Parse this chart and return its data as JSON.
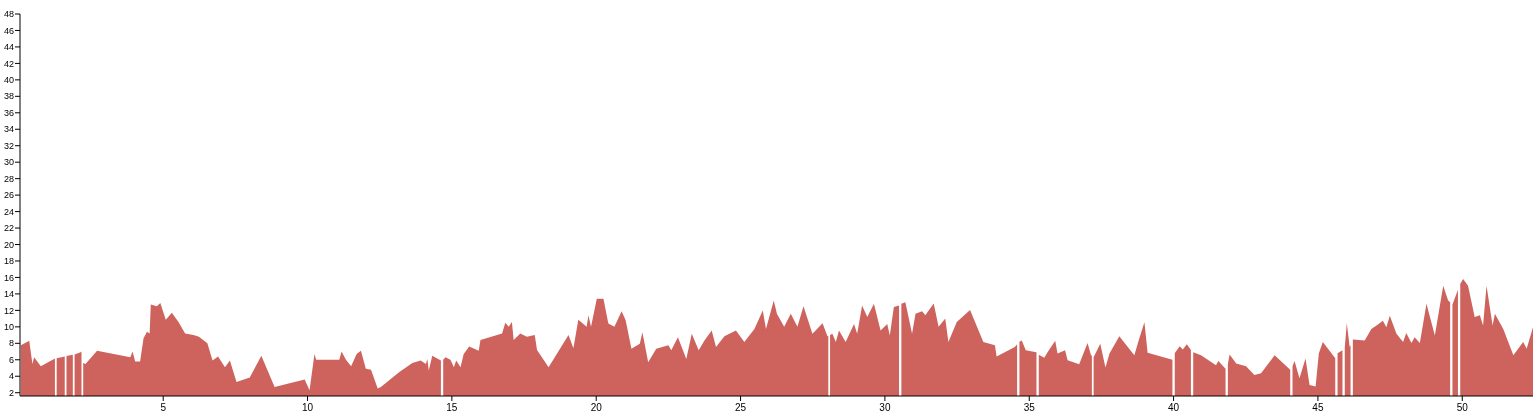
{
  "chart_data": {
    "type": "area",
    "color": "#cd635c",
    "xlim": [
      0.04,
      52.45
    ],
    "xticks": [
      5,
      10,
      15,
      20,
      25,
      30,
      35,
      40,
      45,
      50
    ],
    "ylim": [
      1.6,
      48
    ],
    "yticks": [
      2,
      4,
      6,
      8,
      10,
      12,
      14,
      16,
      18,
      20,
      22,
      24,
      26,
      28,
      30,
      32,
      34,
      36,
      38,
      40,
      42,
      44,
      46,
      48
    ],
    "grid": false,
    "x": [
      0.07,
      0.3,
      0.36,
      0.47,
      0.53,
      0.76,
      1.22,
      1.25,
      1.28,
      1.31,
      1.59,
      1.62,
      1.65,
      1.87,
      1.9,
      1.93,
      2.14,
      2.17,
      2.2,
      2.23,
      2.31,
      2.71,
      3.86,
      3.94,
      4.03,
      4.2,
      4.32,
      4.44,
      4.53,
      4.57,
      4.78,
      4.9,
      5.09,
      5.3,
      5.53,
      5.76,
      6.05,
      6.24,
      6.53,
      6.71,
      6.9,
      7.14,
      7.31,
      7.54,
      8.0,
      8.4,
      8.86,
      9.9,
      10.07,
      10.24,
      10.3,
      11.1,
      11.18,
      11.33,
      11.51,
      11.7,
      11.85,
      12.02,
      12.2,
      12.43,
      12.54,
      13.17,
      13.63,
      13.92,
      14.1,
      14.15,
      14.2,
      14.32,
      14.62,
      14.66,
      14.7,
      14.78,
      14.95,
      15.07,
      15.15,
      15.3,
      15.41,
      15.6,
      15.93,
      15.99,
      16.74,
      16.85,
      16.97,
      17.08,
      17.14,
      17.37,
      17.6,
      17.87,
      17.95,
      18.35,
      19.04,
      19.21,
      19.38,
      19.67,
      19.73,
      19.82,
      20.02,
      20.25,
      20.42,
      20.63,
      20.88,
      21.02,
      21.22,
      21.51,
      21.6,
      21.8,
      22.08,
      22.5,
      22.6,
      22.83,
      23.12,
      23.31,
      23.55,
      23.75,
      24.0,
      24.15,
      24.44,
      24.84,
      25.13,
      25.48,
      25.77,
      25.88,
      26.15,
      26.26,
      26.51,
      26.74,
      26.97,
      27.18,
      27.49,
      27.84,
      28.01,
      28.04,
      28.07,
      28.1,
      28.18,
      28.3,
      28.41,
      28.64,
      28.93,
      29.04,
      29.21,
      29.39,
      29.62,
      29.85,
      30.08,
      30.17,
      30.31,
      30.49,
      30.53,
      30.57,
      30.71,
      30.94,
      31.06,
      31.29,
      31.4,
      31.69,
      31.86,
      32.09,
      32.2,
      32.49,
      32.95,
      33.41,
      33.81,
      33.87,
      34.5,
      34.58,
      34.62,
      34.66,
      34.74,
      34.88,
      35.2,
      35.25,
      35.29,
      35.33,
      35.52,
      35.64,
      35.9,
      35.98,
      36.24,
      36.33,
      36.73,
      37.02,
      37.14,
      37.17,
      37.2,
      37.23,
      37.46,
      37.64,
      37.78,
      38.12,
      38.64,
      38.79,
      38.99,
      39.1,
      39.96,
      40.0,
      40.04,
      40.21,
      40.32,
      40.46,
      40.6,
      40.64,
      40.68,
      40.95,
      41.47,
      41.55,
      41.8,
      41.84,
      41.88,
      41.94,
      42.17,
      42.51,
      42.8,
      43.03,
      43.5,
      44.04,
      44.08,
      44.12,
      44.19,
      44.36,
      44.57,
      44.71,
      44.92,
      45.03,
      45.17,
      45.6,
      45.64,
      45.68,
      45.85,
      45.89,
      45.93,
      46.0,
      46.1,
      46.13,
      46.16,
      46.21,
      46.62,
      46.85,
      47.03,
      47.25,
      47.37,
      47.49,
      47.72,
      47.95,
      48.06,
      48.24,
      48.35,
      48.53,
      48.76,
      49.05,
      49.34,
      49.51,
      49.58,
      49.62,
      49.66,
      49.85,
      49.89,
      49.93,
      50.03,
      50.2,
      50.43,
      50.61,
      50.72,
      50.84,
      51.05,
      51.13,
      51.42,
      51.77,
      52.11,
      52.23,
      52.45
    ],
    "values": [
      7.75,
      8.2,
      8.3,
      5.5,
      6.3,
      5.2,
      6.1,
      6.15,
      null,
      6.2,
      6.4,
      null,
      6.45,
      6.6,
      null,
      6.65,
      6.9,
      7.0,
      null,
      5.6,
      5.5,
      7.1,
      6.3,
      7.0,
      5.8,
      5.8,
      8.6,
      9.4,
      9.2,
      12.7,
      12.5,
      12.9,
      10.85,
      11.7,
      10.6,
      9.2,
      9.0,
      8.8,
      8.0,
      5.9,
      6.4,
      5.1,
      5.9,
      3.3,
      3.85,
      6.5,
      2.7,
      3.6,
      2.3,
      6.7,
      6.0,
      6.0,
      7.0,
      6.0,
      5.2,
      6.7,
      7.1,
      4.9,
      4.8,
      2.5,
      2.7,
      4.5,
      5.6,
      5.9,
      5.5,
      6.1,
      4.7,
      6.5,
      5.9,
      null,
      6.0,
      6.3,
      6.0,
      5.1,
      5.9,
      5.1,
      6.7,
      7.6,
      7.1,
      8.4,
      9.2,
      10.5,
      10.0,
      10.6,
      8.4,
      9.2,
      8.8,
      9.0,
      7.2,
      5.1,
      9.0,
      7.4,
      10.85,
      10.0,
      11.4,
      10.0,
      13.4,
      13.4,
      10.4,
      10.0,
      11.9,
      10.8,
      7.35,
      7.95,
      9.35,
      5.7,
      7.35,
      7.75,
      7.15,
      8.75,
      6.1,
      9.15,
      7.15,
      8.35,
      9.55,
      7.55,
      8.85,
      9.55,
      8.15,
      9.75,
      12.0,
      9.75,
      13.2,
      11.6,
      10.0,
      11.6,
      10.0,
      12.5,
      9.15,
      10.45,
      8.85,
      8.9,
      null,
      9.0,
      9.15,
      8.15,
      9.55,
      8.15,
      10.35,
      9.15,
      12.6,
      11.2,
      12.8,
      9.55,
      10.35,
      8.95,
      12.4,
      12.6,
      null,
      12.8,
      13.0,
      9.15,
      11.6,
      11.9,
      11.4,
      12.85,
      10.0,
      11.0,
      8.15,
      10.6,
      12.05,
      8.15,
      7.75,
      6.4,
      7.55,
      7.9,
      null,
      8.2,
      8.35,
      7.15,
      6.95,
      6.9,
      null,
      6.6,
      6.25,
      6.95,
      8.3,
      6.75,
      7.15,
      5.95,
      5.45,
      8.05,
      6.55,
      6.5,
      null,
      6.3,
      7.95,
      5.05,
      6.75,
      8.85,
      6.55,
      8.35,
      10.55,
      6.85,
      6.0,
      null,
      6.8,
      7.65,
      7.25,
      7.9,
      7.2,
      null,
      6.9,
      6.55,
      5.35,
      5.85,
      4.9,
      null,
      5.5,
      6.65,
      5.55,
      5.2,
      4.15,
      4.35,
      6.55,
      4.8,
      null,
      5.2,
      5.85,
      3.75,
      6.15,
      2.95,
      2.75,
      6.75,
      8.15,
      6.2,
      null,
      6.8,
      7.15,
      null,
      7.5,
      10.45,
      7.55,
      7.8,
      null,
      8.45,
      8.35,
      9.75,
      10.15,
      10.75,
      9.95,
      11.35,
      9.15,
      8.15,
      9.25,
      8.05,
      8.75,
      8.05,
      12.8,
      8.95,
      15.0,
      13.2,
      13.0,
      null,
      12.7,
      14.5,
      null,
      15.2,
      15.8,
      15.0,
      11.2,
      11.4,
      10.15,
      15.0,
      10.15,
      11.6,
      9.75,
      6.55,
      8.15,
      7.35,
      9.95
    ]
  }
}
